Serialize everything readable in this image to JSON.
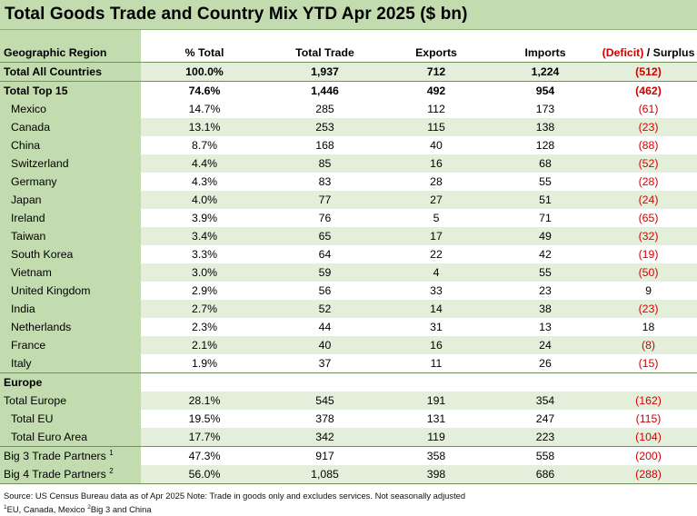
{
  "title": "Total Goods Trade and Country Mix YTD Apr 2025 ($ bn)",
  "chart_data": {
    "type": "table",
    "columns": {
      "region": "Geographic Region",
      "pct": "% Total",
      "trade": "Total Trade",
      "exports": "Exports",
      "imports": "Imports",
      "balance_deficit": "(Deficit)",
      "balance_surplus": " / Surplus"
    },
    "total_all": {
      "region": "Total All Countries",
      "pct": "100.0%",
      "trade": "1,937",
      "exports": "712",
      "imports": "1,224",
      "balance": "(512)"
    },
    "total_top15": {
      "region": "Total Top 15",
      "pct": "74.6%",
      "trade": "1,446",
      "exports": "492",
      "imports": "954",
      "balance": "(462)"
    },
    "countries": [
      {
        "region": "Mexico",
        "pct": "14.7%",
        "trade": "285",
        "exports": "112",
        "imports": "173",
        "balance": "(61)"
      },
      {
        "region": "Canada",
        "pct": "13.1%",
        "trade": "253",
        "exports": "115",
        "imports": "138",
        "balance": "(23)"
      },
      {
        "region": "China",
        "pct": "8.7%",
        "trade": "168",
        "exports": "40",
        "imports": "128",
        "balance": "(88)"
      },
      {
        "region": "Switzerland",
        "pct": "4.4%",
        "trade": "85",
        "exports": "16",
        "imports": "68",
        "balance": "(52)"
      },
      {
        "region": "Germany",
        "pct": "4.3%",
        "trade": "83",
        "exports": "28",
        "imports": "55",
        "balance": "(28)"
      },
      {
        "region": "Japan",
        "pct": "4.0%",
        "trade": "77",
        "exports": "27",
        "imports": "51",
        "balance": "(24)"
      },
      {
        "region": "Ireland",
        "pct": "3.9%",
        "trade": "76",
        "exports": "5",
        "imports": "71",
        "balance": "(65)"
      },
      {
        "region": "Taiwan",
        "pct": "3.4%",
        "trade": "65",
        "exports": "17",
        "imports": "49",
        "balance": "(32)"
      },
      {
        "region": "South Korea",
        "pct": "3.3%",
        "trade": "64",
        "exports": "22",
        "imports": "42",
        "balance": "(19)"
      },
      {
        "region": "Vietnam",
        "pct": "3.0%",
        "trade": "59",
        "exports": "4",
        "imports": "55",
        "balance": "(50)"
      },
      {
        "region": "United Kingdom",
        "pct": "2.9%",
        "trade": "56",
        "exports": "33",
        "imports": "23",
        "balance": "9"
      },
      {
        "region": "India",
        "pct": "2.7%",
        "trade": "52",
        "exports": "14",
        "imports": "38",
        "balance": "(23)"
      },
      {
        "region": "Netherlands",
        "pct": "2.3%",
        "trade": "44",
        "exports": "31",
        "imports": "13",
        "balance": "18"
      },
      {
        "region": "France",
        "pct": "2.1%",
        "trade": "40",
        "exports": "16",
        "imports": "24",
        "balance": "(8)"
      },
      {
        "region": "Italy",
        "pct": "1.9%",
        "trade": "37",
        "exports": "11",
        "imports": "26",
        "balance": "(15)"
      }
    ],
    "europe_label": "Europe",
    "europe": [
      {
        "region": "Total Europe",
        "pct": "28.1%",
        "trade": "545",
        "exports": "191",
        "imports": "354",
        "balance": "(162)"
      },
      {
        "region": "Total EU",
        "pct": "19.5%",
        "trade": "378",
        "exports": "131",
        "imports": "247",
        "balance": "(115)"
      },
      {
        "region": "Total Euro Area",
        "pct": "17.7%",
        "trade": "342",
        "exports": "119",
        "imports": "223",
        "balance": "(104)"
      }
    ],
    "big": [
      {
        "region": "Big 3 Trade Partners",
        "sup": "1",
        "pct": "47.3%",
        "trade": "917",
        "exports": "358",
        "imports": "558",
        "balance": "(200)"
      },
      {
        "region": "Big 4 Trade Partners",
        "sup": "2",
        "pct": "56.0%",
        "trade": "1,085",
        "exports": "398",
        "imports": "686",
        "balance": "(288)"
      }
    ]
  },
  "notes": {
    "source": "Source: US Census Bureau data as of Apr 2025 Note: Trade in goods only and excludes services. Not seasonally adjusted",
    "fn1_sup": "1",
    "fn1_text": "EU, Canada, Mexico ",
    "fn2_sup": "2",
    "fn2_text": "Big 3 and China"
  },
  "colors": {
    "band": "#e4efdb",
    "region_band": "#c3dcaf",
    "negative": "#d40000"
  }
}
